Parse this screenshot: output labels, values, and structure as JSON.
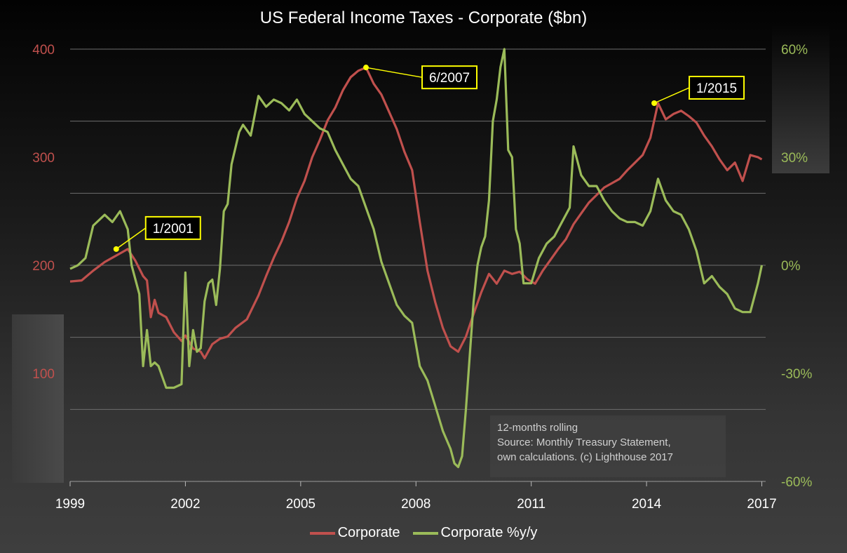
{
  "chart_data": {
    "type": "line",
    "title": "US Federal Income Taxes - Corporate ($bn)",
    "x_ticks": [
      "1999",
      "2002",
      "2005",
      "2008",
      "2011",
      "2014",
      "2017"
    ],
    "x_range": [
      1999,
      2017.1
    ],
    "y_left": {
      "range": [
        0,
        400
      ],
      "ticks": [
        "100",
        "200",
        "300",
        "400"
      ],
      "color": "#c0504d"
    },
    "y_right": {
      "range": [
        -60,
        60
      ],
      "ticks": [
        "60%",
        "30%",
        "0%",
        "-30%",
        "-60%"
      ],
      "color": "#9bbb59"
    },
    "grid": true,
    "legend_position": "bottom",
    "series": [
      {
        "name": "Corporate",
        "axis": "left",
        "color": "#c0504d",
        "x": [
          1999.0,
          1999.3,
          1999.6,
          1999.9,
          2000.1,
          2000.3,
          2000.5,
          2000.7,
          2000.9,
          2001.0,
          2001.1,
          2001.2,
          2001.3,
          2001.5,
          2001.7,
          2001.9,
          2002.0,
          2002.2,
          2002.4,
          2002.5,
          2002.7,
          2002.9,
          2003.1,
          2003.3,
          2003.6,
          2003.9,
          2004.1,
          2004.3,
          2004.5,
          2004.7,
          2004.9,
          2005.1,
          2005.3,
          2005.5,
          2005.7,
          2005.9,
          2006.1,
          2006.3,
          2006.5,
          2006.7,
          2006.9,
          2007.1,
          2007.3,
          2007.5,
          2007.7,
          2007.9,
          2008.1,
          2008.3,
          2008.5,
          2008.7,
          2008.9,
          2009.1,
          2009.3,
          2009.5,
          2009.7,
          2009.9,
          2010.1,
          2010.3,
          2010.5,
          2010.7,
          2010.9,
          2011.1,
          2011.3,
          2011.5,
          2011.7,
          2011.9,
          2012.1,
          2012.3,
          2012.5,
          2012.7,
          2012.9,
          2013.1,
          2013.3,
          2013.5,
          2013.7,
          2013.9,
          2014.1,
          2014.3,
          2014.5,
          2014.7,
          2014.9,
          2015.1,
          2015.3,
          2015.5,
          2015.7,
          2015.9,
          2016.1,
          2016.3,
          2016.5,
          2016.7,
          2016.9,
          2017.0
        ],
        "values": [
          185,
          186,
          195,
          203,
          207,
          211,
          215,
          204,
          190,
          186,
          152,
          168,
          156,
          152,
          138,
          130,
          135,
          123,
          120,
          114,
          127,
          132,
          134,
          142,
          150,
          172,
          190,
          207,
          222,
          240,
          262,
          278,
          300,
          316,
          334,
          346,
          362,
          374,
          380,
          383,
          368,
          358,
          342,
          326,
          305,
          288,
          240,
          195,
          166,
          142,
          125,
          120,
          134,
          155,
          175,
          192,
          183,
          195,
          192,
          194,
          187,
          183,
          195,
          205,
          215,
          224,
          238,
          248,
          258,
          265,
          272,
          276,
          280,
          288,
          295,
          302,
          318,
          350,
          335,
          340,
          343,
          338,
          332,
          320,
          310,
          298,
          288,
          295,
          278,
          302,
          300,
          298
        ]
      },
      {
        "name": "Corporate %y/y",
        "axis": "right",
        "color": "#9bbb59",
        "x": [
          1999.0,
          1999.2,
          1999.4,
          1999.6,
          1999.9,
          2000.1,
          2000.3,
          2000.5,
          2000.6,
          2000.8,
          2000.9,
          2001.0,
          2001.1,
          2001.2,
          2001.3,
          2001.5,
          2001.7,
          2001.9,
          2002.0,
          2002.1,
          2002.2,
          2002.3,
          2002.4,
          2002.5,
          2002.6,
          2002.7,
          2002.8,
          2002.9,
          2003.0,
          2003.1,
          2003.2,
          2003.4,
          2003.5,
          2003.7,
          2003.9,
          2004.1,
          2004.3,
          2004.5,
          2004.7,
          2004.9,
          2005.1,
          2005.3,
          2005.5,
          2005.7,
          2005.9,
          2006.1,
          2006.3,
          2006.5,
          2006.7,
          2006.9,
          2007.1,
          2007.3,
          2007.5,
          2007.7,
          2007.9,
          2008.1,
          2008.3,
          2008.5,
          2008.7,
          2008.9,
          2009.0,
          2009.1,
          2009.2,
          2009.3,
          2009.4,
          2009.5,
          2009.6,
          2009.7,
          2009.8,
          2009.9,
          2010.0,
          2010.1,
          2010.2,
          2010.3,
          2010.4,
          2010.5,
          2010.6,
          2010.7,
          2010.8,
          2010.9,
          2011.0,
          2011.2,
          2011.4,
          2011.6,
          2011.8,
          2012.0,
          2012.1,
          2012.3,
          2012.5,
          2012.7,
          2012.9,
          2013.1,
          2013.3,
          2013.5,
          2013.7,
          2013.9,
          2014.1,
          2014.3,
          2014.5,
          2014.7,
          2014.9,
          2015.1,
          2015.3,
          2015.5,
          2015.7,
          2015.9,
          2016.1,
          2016.3,
          2016.5,
          2016.7,
          2016.9,
          2017.0
        ],
        "values": [
          -1,
          0,
          2,
          11,
          14,
          12,
          15,
          10,
          0,
          -8,
          -28,
          -18,
          -28,
          -27,
          -28,
          -34,
          -34,
          -33,
          -2,
          -28,
          -18,
          -24,
          -23,
          -10,
          -5,
          -4,
          -11,
          -1,
          15,
          17,
          28,
          37,
          39,
          36,
          47,
          44,
          46,
          45,
          43,
          46,
          42,
          40,
          38,
          37,
          32,
          28,
          24,
          22,
          16,
          10,
          1,
          -5,
          -11,
          -14,
          -16,
          -28,
          -32,
          -39,
          -46,
          -51,
          -55,
          -56,
          -53,
          -40,
          -25,
          -10,
          0,
          5,
          8,
          18,
          40,
          46,
          55,
          60,
          32,
          30,
          10,
          6,
          -5,
          -5,
          -5,
          2,
          6,
          8,
          12,
          16,
          33,
          25,
          22,
          22,
          18,
          15,
          13,
          12,
          12,
          11,
          15,
          24,
          18,
          15,
          14,
          10,
          4,
          -5,
          -3,
          -6,
          -8,
          -12,
          -13,
          -13,
          -5,
          0
        ]
      }
    ],
    "annotations": [
      {
        "label": "1/2001",
        "x": 2000.2,
        "y": 215
      },
      {
        "label": "6/2007",
        "x": 2006.7,
        "y": 383
      },
      {
        "label": "1/2015",
        "x": 2014.2,
        "y": 350
      }
    ],
    "note": [
      "12-months rolling",
      "Source: Monthly Treasury Statement,",
      "own calculations. (c) Lighthouse 2017"
    ]
  }
}
